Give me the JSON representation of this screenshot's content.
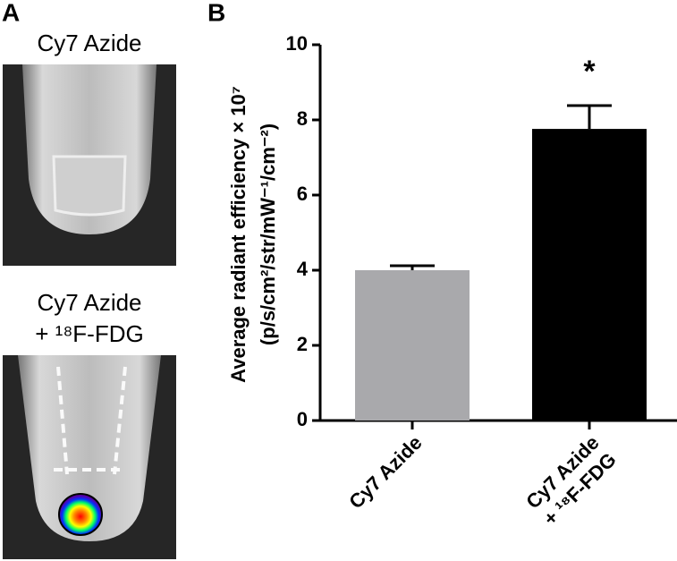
{
  "panels": {
    "a": "A",
    "b": "B"
  },
  "images": [
    {
      "label": [
        "Cy7 Azide"
      ]
    },
    {
      "label": [
        "Cy7 Azide",
        "+ ¹⁸F-FDG"
      ]
    }
  ],
  "chart_data": {
    "type": "bar",
    "y_label": [
      "Average radiant efficiency × 10⁷",
      "(p/s/cm²/str/mW⁻¹/cm⁻²)"
    ],
    "categories": [
      [
        "Cy7 Azide"
      ],
      [
        "Cy7 Azide",
        "+ ¹⁸F-FDG"
      ]
    ],
    "values": [
      4.0,
      7.76
    ],
    "errors": [
      0.12,
      0.62
    ],
    "colors": [
      "#a9a9ac",
      "#000000"
    ],
    "annotations": [
      null,
      "*"
    ],
    "ylim": [
      0,
      10
    ],
    "yticks": [
      0,
      2,
      4,
      6,
      8,
      10
    ]
  }
}
